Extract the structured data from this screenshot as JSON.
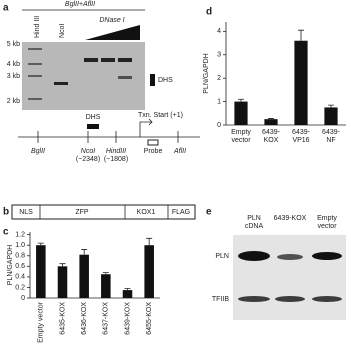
{
  "panel_a": {
    "label": "a",
    "header": "BglII+AflII",
    "lanes": [
      "Hind III",
      "NcoI"
    ],
    "dnase": "DNase I",
    "sizes": [
      "5 kb",
      "4 kb",
      "3 kb",
      "2 kb"
    ],
    "dhs": "DHS",
    "map": {
      "dhs": "DHS",
      "txn": "Txn. Start (+1)",
      "sites": [
        "BglII",
        "NcoI",
        "HindIII",
        "AflII"
      ],
      "positions": [
        "(−2348)",
        "(−1808)"
      ],
      "probe": "Probe"
    }
  },
  "panel_b": {
    "label": "b",
    "domains": [
      "NLS",
      "ZFP",
      "KOX1",
      "FLAG"
    ]
  },
  "panel_c": {
    "label": "c",
    "chart": {
      "type": "bar",
      "ylabel": "PLN/GAPDH",
      "categories": [
        [
          "Empty vector"
        ],
        [
          "6435-KOX"
        ],
        [
          "6436-KOX"
        ],
        [
          "6437-KOX"
        ],
        [
          "6439-KOX"
        ],
        [
          "6455-KOX"
        ]
      ],
      "values": [
        1.0,
        0.6,
        0.82,
        0.45,
        0.15,
        1.0
      ],
      "errors": [
        0.04,
        0.05,
        0.1,
        0.03,
        0.03,
        0.13
      ],
      "color": "#111111",
      "ylim": [
        0,
        1.25
      ],
      "yticks": [
        0,
        0.2,
        0.4,
        0.6,
        0.8,
        {
          "value": 1,
          "label": "1.0"
        },
        1.2
      ]
    }
  },
  "panel_d": {
    "label": "d",
    "chart": {
      "type": "bar",
      "ylabel": "PLN/GAPDH",
      "categories": [
        [
          "Empty",
          "vector"
        ],
        [
          "6439-",
          "KOX"
        ],
        [
          "6439-",
          "VP16"
        ],
        [
          "6439-",
          "NF"
        ]
      ],
      "values": [
        1.0,
        0.25,
        3.6,
        0.75
      ],
      "errors": [
        0.1,
        0.03,
        0.45,
        0.1
      ],
      "color": "#111111",
      "ylim": [
        0,
        4.4
      ],
      "yticks": [
        0,
        1,
        2,
        3,
        4
      ]
    }
  },
  "panel_e": {
    "label": "e",
    "columns": [
      [
        "PLN",
        "cDNA"
      ],
      [
        "6439-KOX"
      ],
      [
        "Empty",
        "vector"
      ]
    ],
    "rows": [
      "PLN",
      "TFIIB"
    ]
  }
}
